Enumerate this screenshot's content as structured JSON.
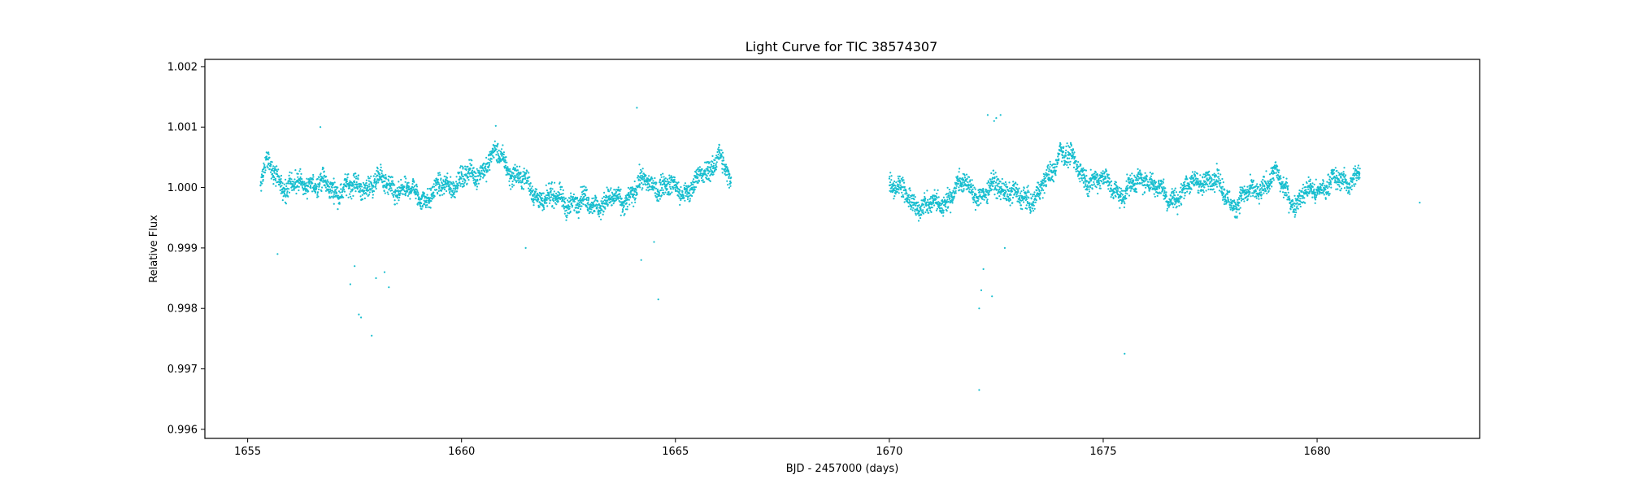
{
  "chart_data": {
    "type": "scatter",
    "title": "Light Curve for TIC 38574307",
    "xlabel": "BJD - 2457000 (days)",
    "ylabel": "Relative Flux",
    "xlim": [
      1654.0,
      1683.8
    ],
    "ylim": [
      0.99585,
      1.00212
    ],
    "xticks": [
      1655,
      1660,
      1665,
      1670,
      1675,
      1680
    ],
    "xtick_labels": [
      "1655",
      "1660",
      "1665",
      "1670",
      "1675",
      "1680"
    ],
    "yticks": [
      0.996,
      0.997,
      0.998,
      0.999,
      1.0,
      1.001,
      1.002
    ],
    "ytick_labels": [
      "0.996",
      "0.997",
      "0.998",
      "0.999",
      "1.000",
      "1.001",
      "1.002"
    ],
    "grid": false,
    "marker_color": "#17becf",
    "segments": [
      {
        "x_start": 1655.3,
        "x_end": 1666.3,
        "trend": [
          [
            1655.3,
            1.00005
          ],
          [
            1655.5,
            1.0004
          ],
          [
            1655.9,
            0.99995
          ],
          [
            1656.4,
            1.0001
          ],
          [
            1657.0,
            0.99998
          ],
          [
            1657.6,
            1.0
          ],
          [
            1658.0,
            1.0001
          ],
          [
            1658.6,
            0.99995
          ],
          [
            1659.2,
            0.99985
          ],
          [
            1659.8,
            1.0001
          ],
          [
            1660.3,
            1.0002
          ],
          [
            1660.8,
            1.00055
          ],
          [
            1661.3,
            1.0002
          ],
          [
            1661.8,
            0.99985
          ],
          [
            1662.3,
            0.9998
          ],
          [
            1662.8,
            0.99975
          ],
          [
            1663.3,
            0.99975
          ],
          [
            1663.8,
            0.9998
          ],
          [
            1664.3,
            1.0001
          ],
          [
            1664.8,
            1.0
          ],
          [
            1665.3,
            0.99995
          ],
          [
            1665.8,
            1.0003
          ],
          [
            1666.0,
            1.0006
          ],
          [
            1666.3,
            1.0
          ]
        ]
      },
      {
        "x_start": 1670.0,
        "x_end": 1681.0,
        "trend": [
          [
            1670.0,
            1.0001
          ],
          [
            1670.5,
            0.9998
          ],
          [
            1670.9,
            0.99965
          ],
          [
            1671.4,
            0.99985
          ],
          [
            1671.8,
            1.0001
          ],
          [
            1672.2,
            0.9998
          ],
          [
            1672.5,
            1.0001
          ],
          [
            1673.0,
            0.9998
          ],
          [
            1673.4,
            0.99985
          ],
          [
            1673.8,
            1.0002
          ],
          [
            1674.0,
            1.0007
          ],
          [
            1674.5,
            1.0002
          ],
          [
            1675.0,
            1.0001
          ],
          [
            1675.5,
            0.9999
          ],
          [
            1676.0,
            1.0002
          ],
          [
            1676.5,
            0.9998
          ],
          [
            1677.0,
            1.0
          ],
          [
            1677.5,
            1.0002
          ],
          [
            1678.0,
            0.99975
          ],
          [
            1678.5,
            0.9999
          ],
          [
            1679.0,
            1.0002
          ],
          [
            1679.5,
            0.99975
          ],
          [
            1680.0,
            1.0
          ],
          [
            1680.5,
            1.0001
          ],
          [
            1681.0,
            1.0002
          ]
        ]
      }
    ],
    "outliers": [
      [
        1657.4,
        0.9984
      ],
      [
        1657.6,
        0.9979
      ],
      [
        1657.65,
        0.99785
      ],
      [
        1657.9,
        0.99755
      ],
      [
        1657.5,
        0.9987
      ],
      [
        1658.0,
        0.9985
      ],
      [
        1658.2,
        0.9986
      ],
      [
        1658.3,
        0.99835
      ],
      [
        1656.7,
        1.001
      ],
      [
        1655.7,
        0.9989
      ],
      [
        1664.2,
        0.9988
      ],
      [
        1664.6,
        0.99815
      ],
      [
        1664.1,
        1.00132
      ],
      [
        1664.5,
        0.9991
      ],
      [
        1660.8,
        1.00102
      ],
      [
        1661.5,
        0.999
      ],
      [
        1672.1,
        0.998
      ],
      [
        1672.15,
        0.9983
      ],
      [
        1672.2,
        0.99865
      ],
      [
        1672.4,
        0.9982
      ],
      [
        1672.5,
        1.00115
      ],
      [
        1672.6,
        1.0012
      ],
      [
        1672.45,
        1.0011
      ],
      [
        1672.1,
        0.99665
      ],
      [
        1675.5,
        0.99725
      ],
      [
        1682.4,
        0.99975
      ],
      [
        1672.7,
        0.999
      ],
      [
        1672.3,
        1.0012
      ]
    ]
  }
}
